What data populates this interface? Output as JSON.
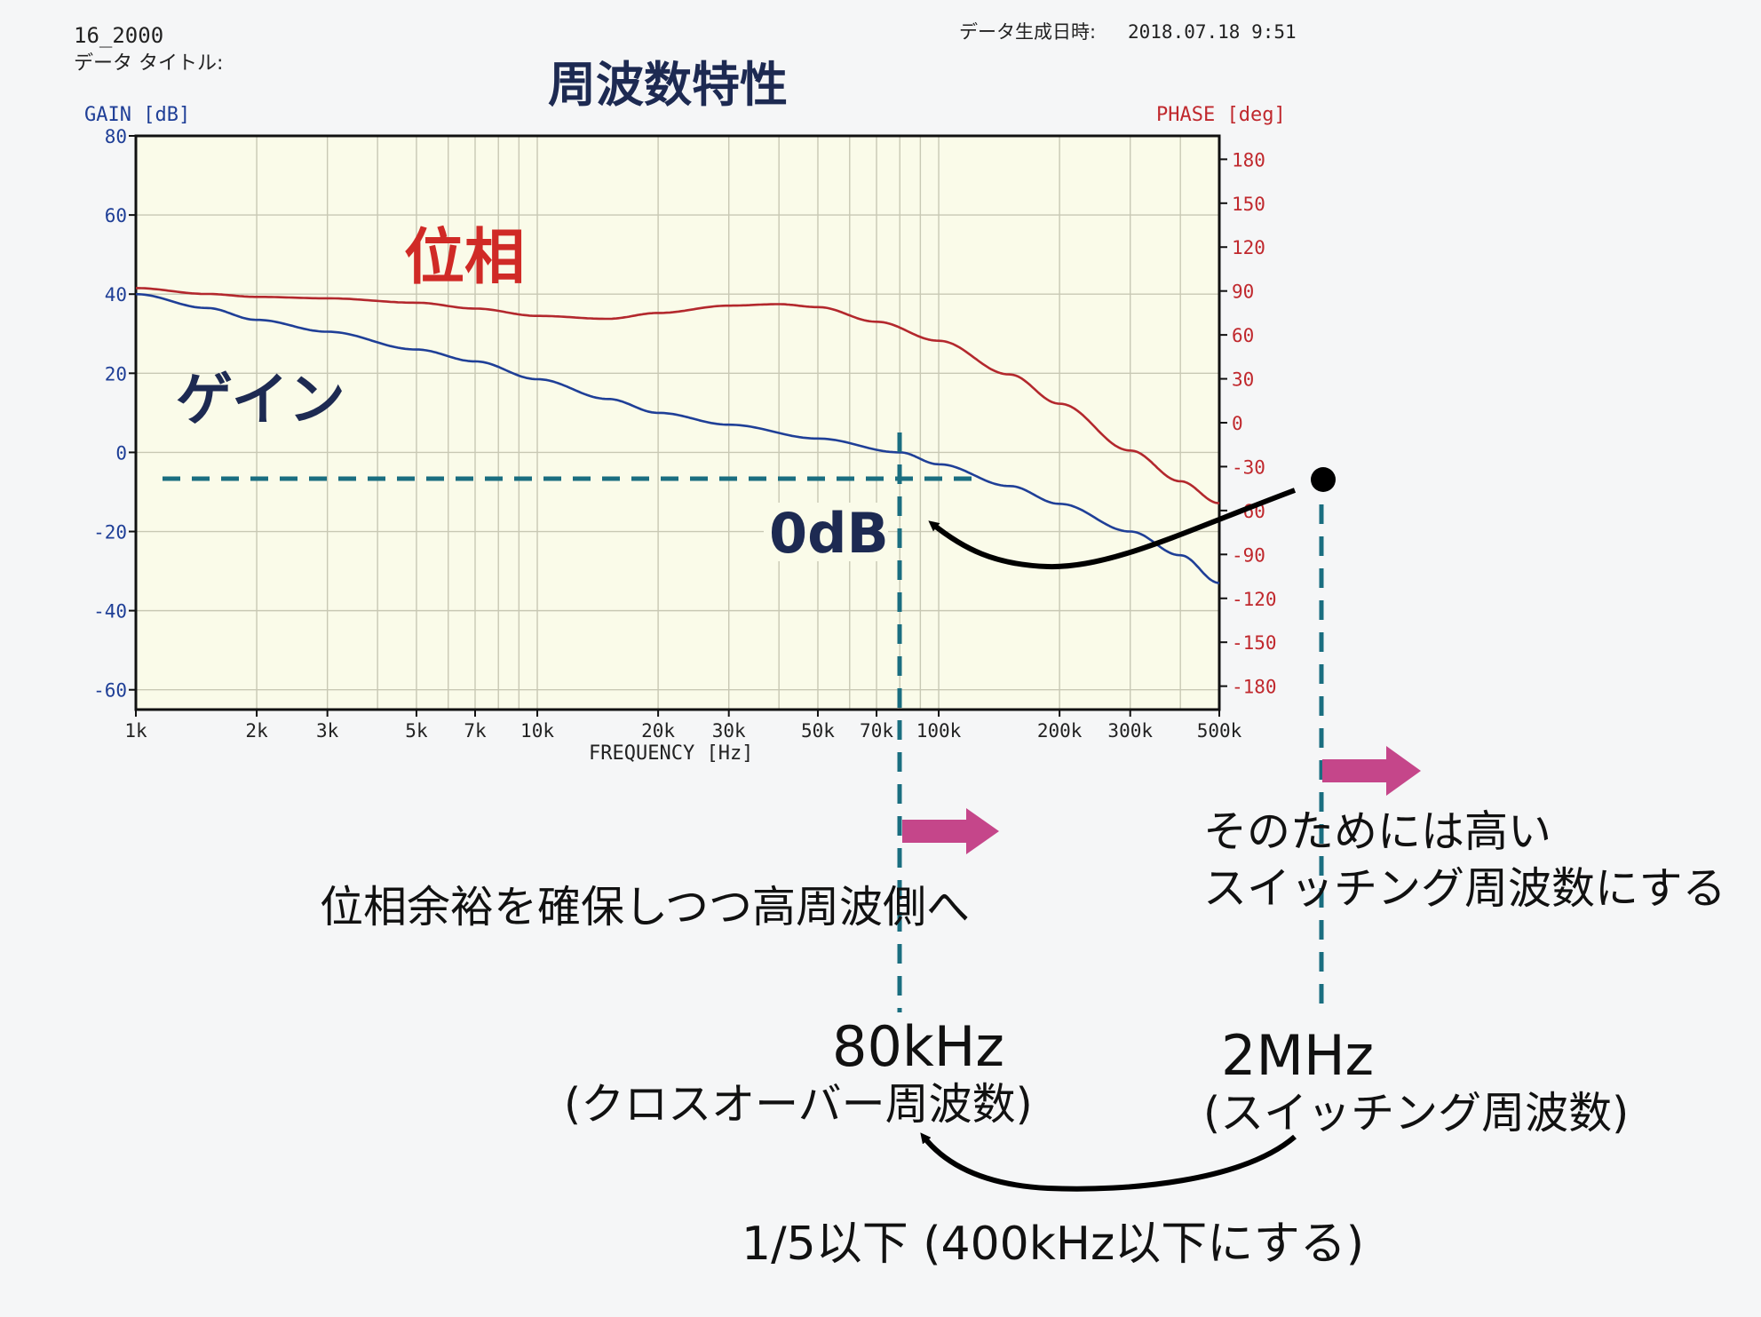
{
  "header": {
    "file_id": "16_2000",
    "data_title_label": "データ タイトル:",
    "generated_label": "データ生成日時:",
    "generated_value": "2018.07.18 9:51"
  },
  "chart_data": {
    "type": "line",
    "title": "周波数特性",
    "xlabel": "FREQUENCY [Hz]",
    "ylabel_left": "GAIN [dB]",
    "ylabel_right": "PHASE [deg]",
    "xscale": "log",
    "xlim": [
      1000,
      500000
    ],
    "ylim_left": [
      -65,
      80
    ],
    "ylim_right": [
      -196,
      196
    ],
    "grid": true,
    "x_tick_labels": [
      "1k",
      "2k",
      "3k",
      "5k",
      "7k",
      "10k",
      "20k",
      "30k",
      "50k",
      "70k",
      "100k",
      "200k",
      "300k",
      "500k"
    ],
    "x_ticks": [
      1000,
      2000,
      3000,
      5000,
      7000,
      10000,
      20000,
      30000,
      50000,
      70000,
      100000,
      200000,
      300000,
      500000
    ],
    "y_left_ticks": [
      80,
      60,
      40,
      20,
      0,
      -20,
      -40,
      -60
    ],
    "y_right_ticks": [
      180,
      150,
      120,
      90,
      60,
      30,
      0,
      -30,
      -60,
      -90,
      -120,
      -150,
      -180
    ],
    "series": [
      {
        "name": "ゲイン",
        "axis": "left",
        "color": "#1f3f97",
        "x": [
          1000,
          1500,
          2000,
          3000,
          5000,
          7000,
          10000,
          15000,
          20000,
          30000,
          50000,
          80000,
          100000,
          150000,
          200000,
          300000,
          400000,
          500000
        ],
        "y": [
          40,
          36.5,
          33.5,
          30.5,
          26,
          23,
          18.5,
          13.5,
          10,
          7,
          3.5,
          0,
          -3,
          -8.5,
          -13,
          -20,
          -26,
          -33
        ]
      },
      {
        "name": "位相",
        "axis": "right",
        "color": "#b3282d",
        "x": [
          1000,
          1500,
          2000,
          3000,
          5000,
          7000,
          10000,
          15000,
          20000,
          30000,
          40000,
          50000,
          70000,
          100000,
          150000,
          200000,
          300000,
          400000,
          500000
        ],
        "y": [
          92,
          88,
          86,
          85,
          82,
          78,
          73,
          71,
          75,
          80,
          81,
          79,
          69,
          56,
          33,
          13,
          -19,
          -40,
          -55
        ]
      }
    ],
    "annotations": {
      "phase_label": "位相",
      "gain_label": "ゲイン",
      "zero_db": "0dB",
      "crossover_freq": "80kHz",
      "crossover_note": "(クロスオーバー周波数)",
      "switching_freq": "2MHz",
      "switching_note": "(スイッチング周波数)",
      "phase_margin_note": "位相余裕を確保しつつ高周波側へ",
      "high_sw_line1": "そのためには高い",
      "high_sw_line2": "スイッチング周波数にする",
      "ratio_note": "1/5以下 (400kHz以下にする)"
    },
    "colors": {
      "gain_axis": "#1f3f97",
      "phase_axis": "#c0282d",
      "plot_bg": "#fafbe9",
      "grid": "#c8c8b4",
      "dashed_marker": "#1a6e80",
      "arrow_pink": "#c5468a",
      "title": "#1d2a52"
    }
  }
}
